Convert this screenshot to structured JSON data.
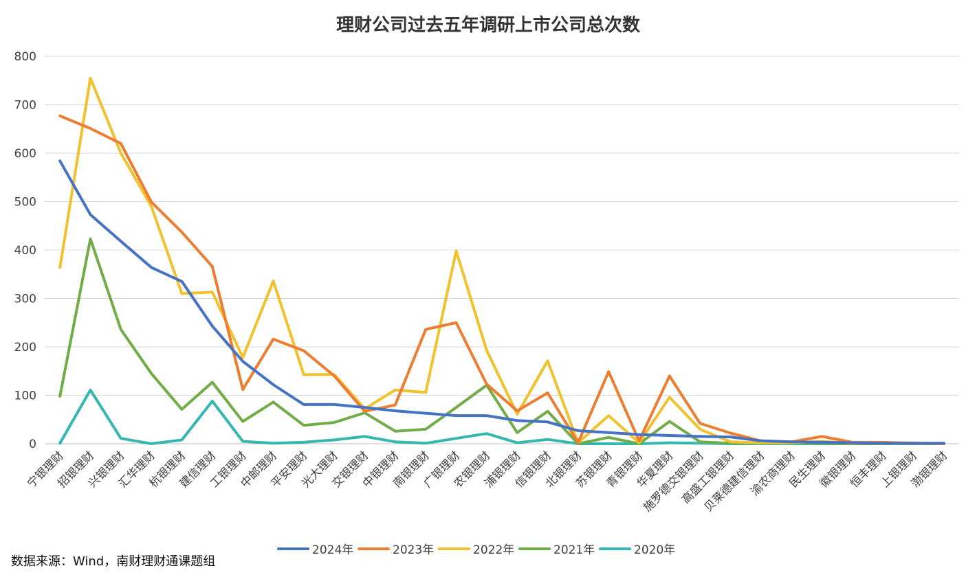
{
  "chart_data": {
    "type": "line",
    "title": "理财公司过去五年调研上市公司总次数",
    "xlabel": "",
    "ylabel": "",
    "ylim": [
      0,
      800
    ],
    "yticks": [
      0,
      100,
      200,
      300,
      400,
      500,
      600,
      700,
      800
    ],
    "grid": true,
    "legend_position": "bottom",
    "categories": [
      "宁银理财",
      "招银理财",
      "兴银理财",
      "汇华理财",
      "杭银理财",
      "建信理财",
      "工银理财",
      "中邮理财",
      "平安理财",
      "光大理财",
      "交银理财",
      "中银理财",
      "南银理财",
      "广银理财",
      "农银理财",
      "浦银理财",
      "信银理财",
      "北银理财",
      "苏银理财",
      "青银理财",
      "华夏理财",
      "施罗德交银理财",
      "高盛工银理财",
      "贝莱德建信理财",
      "渝农商理财",
      "民生理财",
      "徽银理财",
      "恒丰理财",
      "上银理财",
      "渤银理财"
    ],
    "series": [
      {
        "name": "2024年",
        "color": "#4472C4",
        "values": [
          584,
          473,
          418,
          364,
          335,
          243,
          170,
          122,
          81,
          81,
          75,
          68,
          63,
          58,
          58,
          48,
          45,
          27,
          23,
          19,
          17,
          15,
          14,
          6,
          4,
          3,
          2,
          1,
          1,
          1
        ]
      },
      {
        "name": "2023年",
        "color": "#ED7D31",
        "values": [
          677,
          651,
          620,
          499,
          437,
          366,
          112,
          216,
          192,
          140,
          67,
          80,
          236,
          250,
          123,
          68,
          105,
          2,
          149,
          6,
          140,
          42,
          22,
          6,
          4,
          15,
          3,
          3,
          1,
          0
        ]
      },
      {
        "name": "2022年",
        "color": "#F2C12E",
        "values": [
          364,
          755,
          600,
          490,
          310,
          313,
          178,
          336,
          143,
          143,
          72,
          111,
          106,
          398,
          193,
          61,
          171,
          2,
          58,
          2,
          96,
          30,
          4,
          2,
          2,
          5,
          1,
          2,
          2,
          0
        ]
      },
      {
        "name": "2021年",
        "color": "#70AD47",
        "values": [
          98,
          423,
          236,
          145,
          71,
          127,
          46,
          86,
          38,
          44,
          64,
          26,
          30,
          75,
          121,
          23,
          67,
          0,
          13,
          0,
          46,
          4,
          1,
          1,
          1,
          1,
          0,
          0,
          0,
          0
        ]
      },
      {
        "name": "2020年",
        "color": "#35B7B1",
        "values": [
          1,
          111,
          11,
          0,
          8,
          88,
          5,
          1,
          3,
          8,
          15,
          4,
          1,
          11,
          21,
          2,
          9,
          0,
          0,
          0,
          2,
          1,
          0,
          0,
          0,
          0,
          0,
          0,
          0,
          0
        ]
      }
    ]
  },
  "source_text": "数据来源：Wind，南财理财通课题组"
}
